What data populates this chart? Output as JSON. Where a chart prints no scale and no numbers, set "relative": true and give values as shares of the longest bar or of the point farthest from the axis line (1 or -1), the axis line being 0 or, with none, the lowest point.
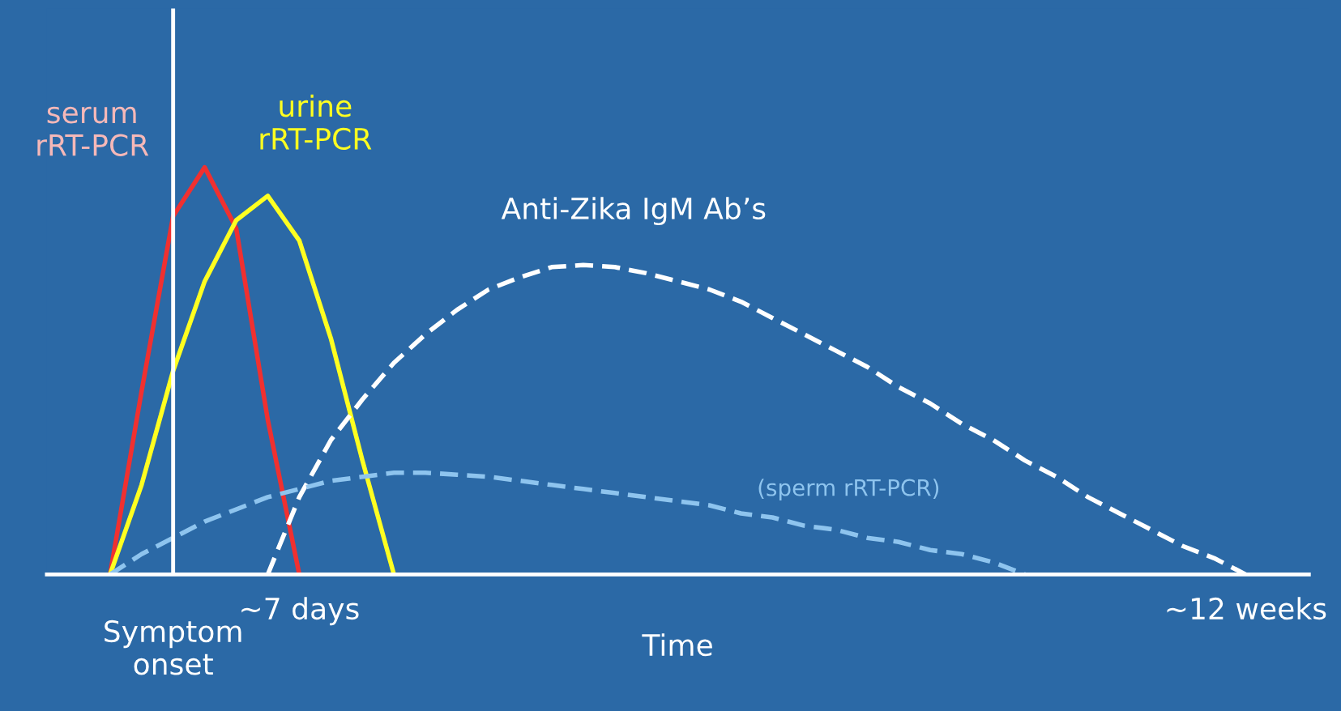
{
  "chart_data": {
    "type": "line",
    "relative": true,
    "xlabel": "Time",
    "categories": [
      null,
      null,
      null,
      null,
      "Symptom\nonset",
      null,
      null,
      null,
      "~7 days",
      null,
      null,
      null,
      null,
      null,
      null,
      null,
      null,
      null,
      null,
      null,
      null,
      null,
      null,
      null,
      null,
      null,
      null,
      null,
      null,
      null,
      null,
      null,
      null,
      null,
      null,
      null,
      null,
      null,
      "~12 weeks",
      null,
      null
    ],
    "series": [
      {
        "name": "serum\nrRT-PCR",
        "color": "#f03030",
        "line_style": "solid",
        "values": [
          null,
          null,
          0,
          0.45,
          0.88,
          1.0,
          0.85,
          0.38,
          0,
          null,
          null,
          null,
          null,
          null,
          null,
          null,
          null,
          null,
          null,
          null,
          null,
          null,
          null,
          null,
          null,
          null,
          null,
          null,
          null,
          null,
          null,
          null,
          null,
          null,
          null,
          null,
          null,
          null,
          null,
          null,
          null
        ]
      },
      {
        "name": "urine\nrRT-PCR",
        "color": "#ffff20",
        "line_style": "solid",
        "values": [
          null,
          null,
          0,
          0.22,
          0.5,
          0.72,
          0.87,
          0.93,
          0.82,
          0.58,
          0.28,
          0,
          null,
          null,
          null,
          null,
          null,
          null,
          null,
          null,
          null,
          null,
          null,
          null,
          null,
          null,
          null,
          null,
          null,
          null,
          null,
          null,
          null,
          null,
          null,
          null,
          null,
          null,
          null,
          null,
          null
        ]
      },
      {
        "name": "Anti-Zika IgM Ab’s",
        "color": "#ffffff",
        "line_style": "dashed",
        "values": [
          null,
          null,
          null,
          null,
          null,
          null,
          null,
          0,
          0.19,
          0.33,
          0.43,
          0.52,
          0.59,
          0.65,
          0.7,
          0.73,
          0.755,
          0.76,
          0.755,
          0.74,
          0.72,
          0.7,
          0.67,
          0.63,
          0.59,
          0.55,
          0.51,
          0.46,
          0.42,
          0.37,
          0.33,
          0.28,
          0.24,
          0.19,
          0.15,
          0.11,
          0.07,
          0.04,
          0,
          null,
          null
        ]
      },
      {
        "name": "(sperm rRT-PCR)",
        "color": "#8ec4ee",
        "line_style": "dashed",
        "values": [
          null,
          null,
          0,
          0.05,
          0.09,
          0.13,
          0.16,
          0.19,
          0.21,
          0.23,
          0.24,
          0.25,
          0.25,
          0.245,
          0.24,
          0.23,
          0.22,
          0.21,
          0.2,
          0.19,
          0.18,
          0.17,
          0.15,
          0.14,
          0.12,
          0.11,
          0.09,
          0.08,
          0.06,
          0.05,
          0.03,
          0,
          null,
          null,
          null,
          null,
          null,
          null,
          null,
          null,
          null
        ]
      }
    ],
    "ref_lines": [
      {
        "axis": "x",
        "value": "Symptom\nonset",
        "color": "#ffffff"
      }
    ]
  }
}
